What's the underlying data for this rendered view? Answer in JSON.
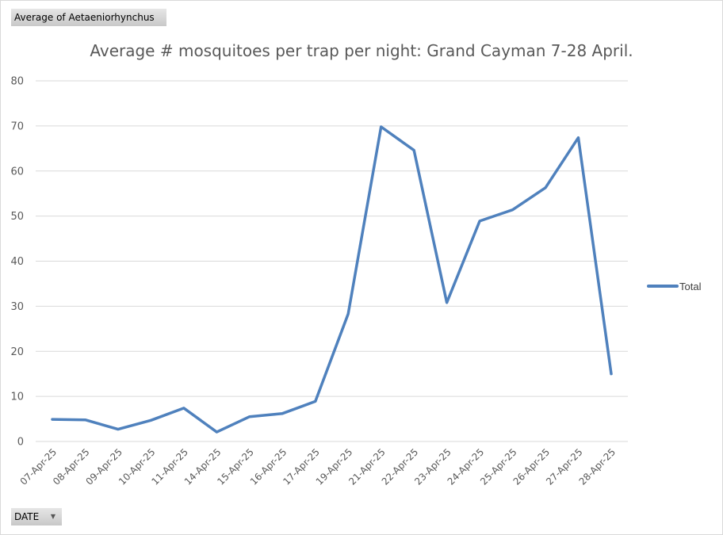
{
  "pivot": {
    "measure_button_label": "Average  of Aetaeniorhynchus",
    "axis_field_button_label": "DATE",
    "axis_field_dropdown_icon": "dropdown-arrow-icon"
  },
  "legend": {
    "series_label": "Total",
    "line_color": "#4f81bd"
  },
  "chart_data": {
    "type": "line",
    "title": "Average # mosquitoes per trap per night: Grand Cayman 7-28 April.",
    "xlabel": "",
    "ylabel": "",
    "ylim": [
      0,
      80
    ],
    "yticks": [
      0,
      10,
      20,
      30,
      40,
      50,
      60,
      70,
      80
    ],
    "grid": true,
    "legend_position": "right",
    "categories": [
      "07-Apr-25",
      "08-Apr-25",
      "09-Apr-25",
      "10-Apr-25",
      "11-Apr-25",
      "14-Apr-25",
      "15-Apr-25",
      "16-Apr-25",
      "17-Apr-25",
      "19-Apr-25",
      "21-Apr-25",
      "22-Apr-25",
      "23-Apr-25",
      "24-Apr-25",
      "25-Apr-25",
      "26-Apr-25",
      "27-Apr-25",
      "28-Apr-25"
    ],
    "series": [
      {
        "name": "Total",
        "color": "#4f81bd",
        "values": [
          4.9,
          4.8,
          2.7,
          4.7,
          7.4,
          2.1,
          5.5,
          6.2,
          8.9,
          28.3,
          69.8,
          64.6,
          30.8,
          48.9,
          51.4,
          56.3,
          67.4,
          15.0
        ]
      }
    ]
  }
}
